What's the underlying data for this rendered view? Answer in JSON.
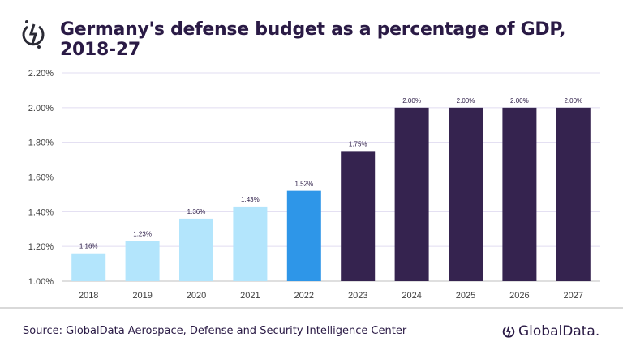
{
  "title": "Germany's defense budget as a percentage of GDP, 2018-27",
  "source": "Source: GlobalData Aerospace, Defense and Security Intelligence Center",
  "brand": "GlobalData.",
  "colors": {
    "actual": "#b3e5fc",
    "highlight": "#2e96e8",
    "forecast": "#35234f",
    "text": "#2a1a45",
    "grid": "#e0dcf0"
  },
  "chart_data": {
    "type": "bar",
    "title": "Germany's defense budget as a percentage of GDP, 2018-27",
    "xlabel": "",
    "ylabel": "",
    "categories": [
      "2018",
      "2019",
      "2020",
      "2021",
      "2022",
      "2023",
      "2024",
      "2025",
      "2026",
      "2027"
    ],
    "values": [
      1.16,
      1.23,
      1.36,
      1.43,
      1.52,
      1.75,
      2.0,
      2.0,
      2.0,
      2.0
    ],
    "data_labels": [
      "1.16%",
      "1.23%",
      "1.36%",
      "1.43%",
      "1.52%",
      "1.75%",
      "2.00%",
      "2.00%",
      "2.00%",
      "2.00%"
    ],
    "bar_colors": [
      "#b3e5fc",
      "#b3e5fc",
      "#b3e5fc",
      "#b3e5fc",
      "#2e96e8",
      "#35234f",
      "#35234f",
      "#35234f",
      "#35234f",
      "#35234f"
    ],
    "ylim": [
      1.0,
      2.2
    ],
    "yticks": [
      "1.00%",
      "1.20%",
      "1.40%",
      "1.60%",
      "1.80%",
      "2.00%",
      "2.20%"
    ],
    "grid": true,
    "legend": "none"
  }
}
